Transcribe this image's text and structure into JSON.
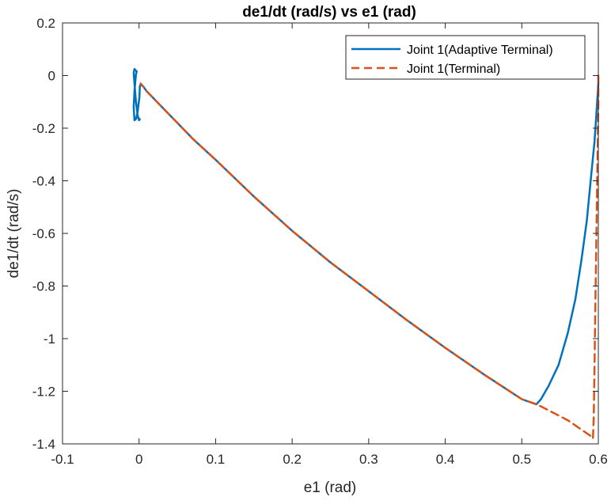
{
  "chart_data": {
    "type": "line",
    "title": "de1/dt (rad/s) vs e1 (rad)",
    "xlabel": "e1 (rad)",
    "ylabel": "de1/dt (rad/s)",
    "xlim": [
      -0.1,
      0.6
    ],
    "ylim": [
      -1.4,
      0.2
    ],
    "xticks": [
      -0.1,
      0,
      0.1,
      0.2,
      0.3,
      0.4,
      0.5,
      0.6
    ],
    "xtick_labels": [
      "-0.1",
      "0",
      "0.1",
      "0.2",
      "0.3",
      "0.4",
      "0.5",
      "0.6"
    ],
    "yticks": [
      0.2,
      0,
      -0.2,
      -0.4,
      -0.6,
      -0.8,
      -1,
      -1.2,
      -1.4
    ],
    "ytick_labels": [
      "0.2",
      "0",
      "-0.2",
      "-0.4",
      "-0.6",
      "-0.8",
      "-1",
      "-1.2",
      "-1.4"
    ],
    "grid": false,
    "legend_position": "top-right",
    "series": [
      {
        "name": "Joint 1(Adaptive Terminal)",
        "color": "#0072BD",
        "style": "solid",
        "x": [
          0.6,
          0.598,
          0.595,
          0.59,
          0.585,
          0.578,
          0.57,
          0.56,
          0.548,
          0.535,
          0.525,
          0.519,
          0.5,
          0.45,
          0.4,
          0.35,
          0.3,
          0.25,
          0.2,
          0.15,
          0.1,
          0.07,
          0.05,
          0.03,
          0.02,
          0.01,
          0.005,
          0.002,
          0.001,
          0.0005,
          -0.002,
          -0.004,
          -0.006,
          -0.007,
          -0.006,
          -0.004,
          -0.003,
          -0.006,
          -0.007,
          -0.006,
          -0.004,
          -0.002,
          0.0,
          0.001
        ],
        "y": [
          -0.03,
          -0.12,
          -0.25,
          -0.4,
          -0.55,
          -0.7,
          -0.85,
          -0.98,
          -1.1,
          -1.18,
          -1.23,
          -1.25,
          -1.23,
          -1.135,
          -1.035,
          -0.93,
          -0.82,
          -0.71,
          -0.59,
          -0.46,
          -0.32,
          -0.24,
          -0.18,
          -0.12,
          -0.09,
          -0.06,
          -0.04,
          -0.035,
          -0.04,
          -0.08,
          -0.14,
          -0.165,
          -0.17,
          -0.12,
          -0.06,
          0.005,
          0.015,
          0.025,
          0.01,
          -0.03,
          -0.1,
          -0.15,
          -0.17,
          -0.165
        ]
      },
      {
        "name": "Joint 1(Terminal)",
        "color": "#D95319",
        "style": "dashed",
        "x": [
          0.6,
          0.6,
          0.599,
          0.598,
          0.597,
          0.596,
          0.595,
          0.594,
          0.593,
          0.59,
          0.58,
          0.56,
          0.54,
          0.52,
          0.5,
          0.45,
          0.4,
          0.35,
          0.3,
          0.25,
          0.2,
          0.15,
          0.1,
          0.07,
          0.05,
          0.03,
          0.02,
          0.01,
          0.005,
          0.002
        ],
        "y": [
          0.0,
          -0.1,
          -0.3,
          -0.5,
          -0.7,
          -0.9,
          -1.1,
          -1.3,
          -1.38,
          -1.37,
          -1.35,
          -1.31,
          -1.28,
          -1.25,
          -1.23,
          -1.135,
          -1.035,
          -0.93,
          -0.82,
          -0.71,
          -0.59,
          -0.46,
          -0.32,
          -0.24,
          -0.18,
          -0.12,
          -0.09,
          -0.06,
          -0.04,
          -0.03
        ]
      }
    ]
  }
}
